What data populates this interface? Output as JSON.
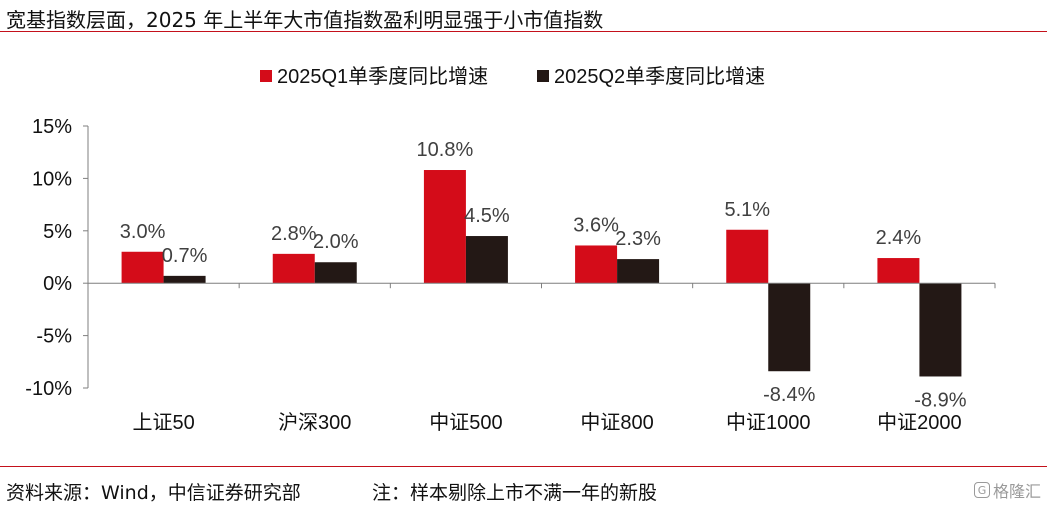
{
  "header": {
    "title": "宽基指数层面，2025 年上半年大市值指数盈利明显强于小市值指数"
  },
  "footer": {
    "source": "资料来源：Wind，中信证券研究部",
    "note": "注：样本剔除上市不满一年的新股"
  },
  "watermark": {
    "text": "格隆汇"
  },
  "chart_data": {
    "type": "bar",
    "title": "",
    "xlabel": "",
    "ylabel": "",
    "categories": [
      "上证50",
      "沪深300",
      "中证500",
      "中证800",
      "中证1000",
      "中证2000"
    ],
    "series": [
      {
        "name": "2025Q1单季度同比增速",
        "values": [
          3.0,
          2.8,
          10.8,
          3.6,
          5.1,
          2.4
        ],
        "labels": [
          "3.0%",
          "2.8%",
          "10.8%",
          "3.6%",
          "5.1%",
          "2.4%"
        ],
        "color": "#d40c19"
      },
      {
        "name": "2025Q2单季度同比增速",
        "values": [
          0.7,
          2.0,
          4.5,
          2.3,
          -8.4,
          -8.9
        ],
        "labels": [
          "0.7%",
          "2.0%",
          "4.5%",
          "2.3%",
          "-8.4%",
          "-8.9%"
        ],
        "color": "#231815"
      }
    ],
    "ylim": [
      -10,
      15
    ],
    "yticks": [
      -10,
      -5,
      0,
      5,
      10,
      15
    ],
    "ytick_labels": [
      "-10%",
      "-5%",
      "0%",
      "5%",
      "10%",
      "15%"
    ],
    "grid": false,
    "legend": "top-center"
  }
}
